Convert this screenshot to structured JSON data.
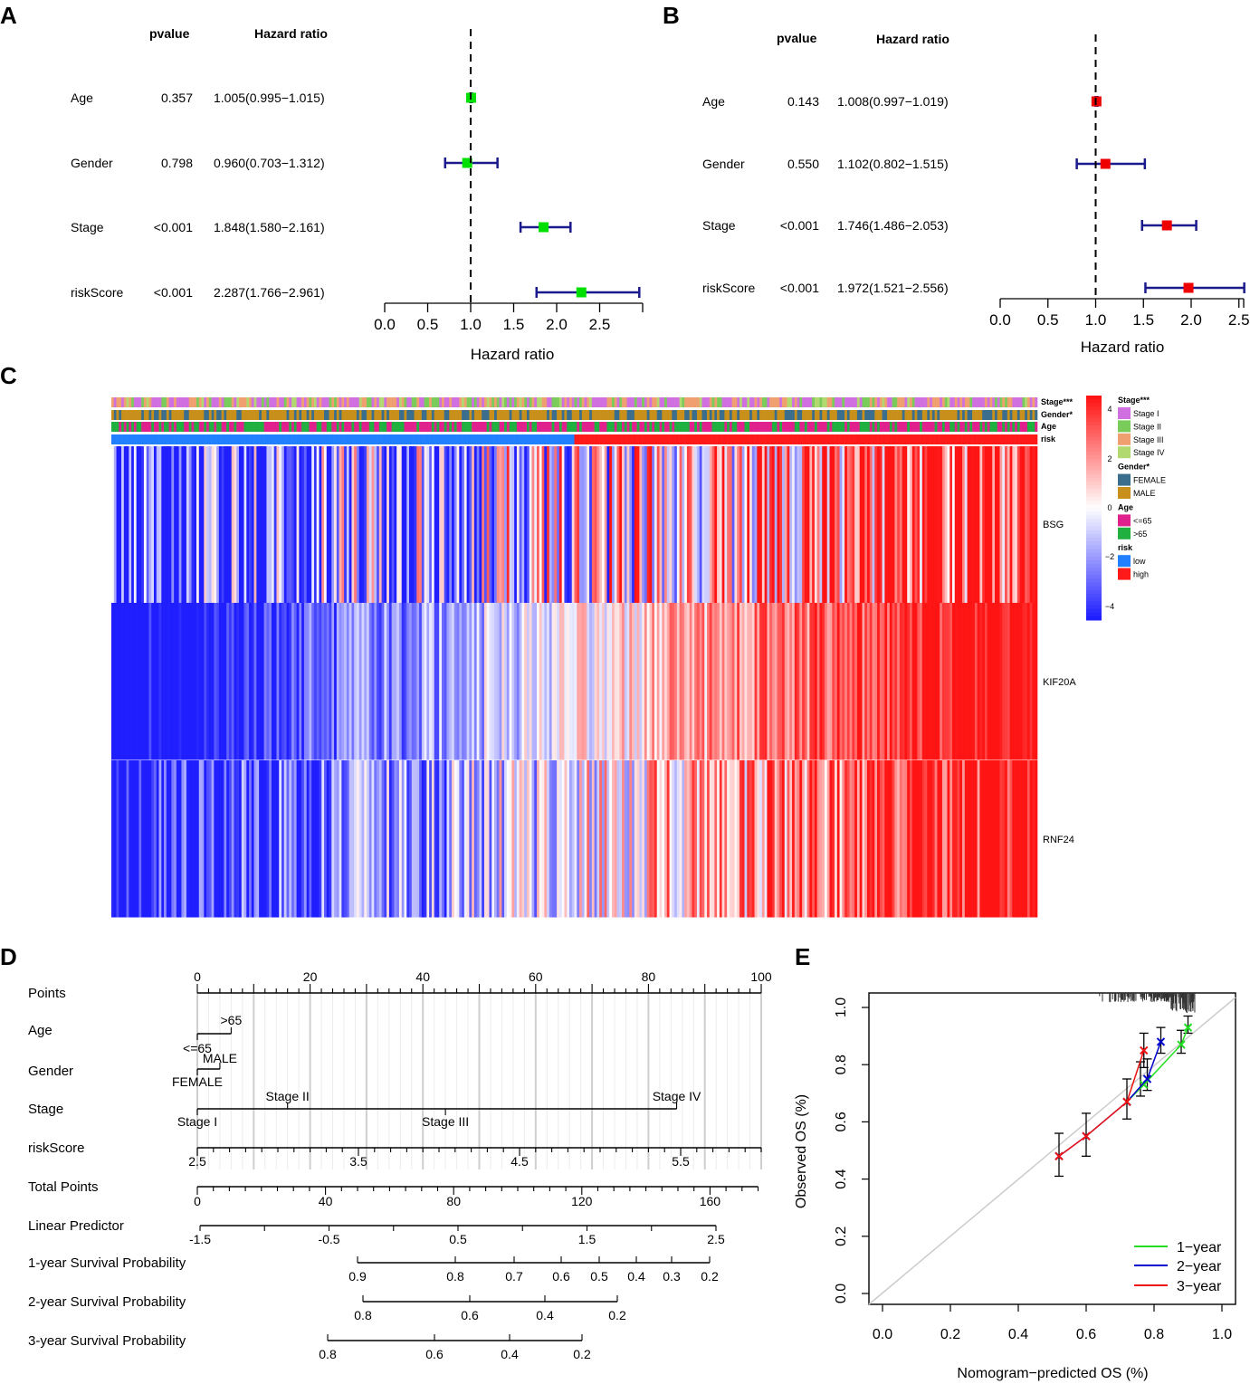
{
  "panel_labels": [
    "A",
    "B",
    "C",
    "D",
    "E"
  ],
  "chart_data": [
    {
      "id": "A",
      "type": "forest",
      "title": "",
      "headers": {
        "pvalue": "pvalue",
        "hr": "Hazard ratio"
      },
      "xlabel": "Hazard ratio",
      "xlim": [
        0,
        3.0
      ],
      "ticks": [
        "0.0",
        "0.5",
        "1.0",
        "1.5",
        "2.0",
        "2.5"
      ],
      "reference": 1.0,
      "color": "#00e000",
      "rows": [
        {
          "label": "Age",
          "pvalue": "0.357",
          "text": "1.005(0.995−1.015)",
          "hr": 1.005,
          "lo": 0.995,
          "hi": 1.015
        },
        {
          "label": "Gender",
          "pvalue": "0.798",
          "text": "0.960(0.703−1.312)",
          "hr": 0.96,
          "lo": 0.703,
          "hi": 1.312
        },
        {
          "label": "Stage",
          "pvalue": "<0.001",
          "text": "1.848(1.580−2.161)",
          "hr": 1.848,
          "lo": 1.58,
          "hi": 2.161
        },
        {
          "label": "riskScore",
          "pvalue": "<0.001",
          "text": "2.287(1.766−2.961)",
          "hr": 2.287,
          "lo": 1.766,
          "hi": 2.961
        }
      ]
    },
    {
      "id": "B",
      "type": "forest",
      "title": "",
      "headers": {
        "pvalue": "pvalue",
        "hr": "Hazard ratio"
      },
      "xlabel": "Hazard ratio",
      "xlim": [
        0,
        2.55
      ],
      "ticks": [
        "0.0",
        "0.5",
        "1.0",
        "1.5",
        "2.0",
        "2.5"
      ],
      "reference": 1.0,
      "color": "#ee0000",
      "rows": [
        {
          "label": "Age",
          "pvalue": "0.143",
          "text": "1.008(0.997−1.019)",
          "hr": 1.008,
          "lo": 0.997,
          "hi": 1.019
        },
        {
          "label": "Gender",
          "pvalue": "0.550",
          "text": "1.102(0.802−1.515)",
          "hr": 1.102,
          "lo": 0.802,
          "hi": 1.515
        },
        {
          "label": "Stage",
          "pvalue": "<0.001",
          "text": "1.746(1.486−2.053)",
          "hr": 1.746,
          "lo": 1.486,
          "hi": 2.053
        },
        {
          "label": "riskScore",
          "pvalue": "<0.001",
          "text": "1.972(1.521−2.556)",
          "hr": 1.972,
          "lo": 1.521,
          "hi": 2.556
        }
      ]
    },
    {
      "id": "C",
      "type": "heatmap",
      "annotation_rows": [
        "Stage***",
        "Gender*",
        "Age",
        "risk"
      ],
      "genes": [
        "BSG",
        "KIF20A",
        "RNF24"
      ],
      "n_samples": 370,
      "low_risk_fraction": 0.5,
      "colorbar": {
        "min": -4,
        "max": 4,
        "ticks": [
          "4",
          "2",
          "0",
          "−2",
          "−4"
        ],
        "low": "#2020ff",
        "mid": "#ffffff",
        "high": "#ff1010"
      },
      "legend": [
        {
          "title": "Stage***",
          "items": [
            {
              "label": "Stage I",
              "color": "#d070e0"
            },
            {
              "label": "Stage II",
              "color": "#7acc5a"
            },
            {
              "label": "Stage III",
              "color": "#f0a070"
            },
            {
              "label": "Stage IV",
              "color": "#b2d870"
            }
          ]
        },
        {
          "title": "Gender*",
          "items": [
            {
              "label": "FEMALE",
              "color": "#3a6e8c"
            },
            {
              "label": "MALE",
              "color": "#c8901a"
            }
          ]
        },
        {
          "title": "Age",
          "items": [
            {
              "label": "<=65",
              "color": "#e0208c"
            },
            {
              "label": ">65",
              "color": "#20b040"
            }
          ]
        },
        {
          "title": "risk",
          "items": [
            {
              "label": "low",
              "color": "#2080ff"
            },
            {
              "label": "high",
              "color": "#ff1a1a"
            }
          ]
        }
      ]
    },
    {
      "id": "D",
      "type": "nomogram",
      "rows": [
        {
          "label": "Points",
          "ticks": [
            "0",
            "20",
            "40",
            "60",
            "80",
            "100"
          ]
        },
        {
          "label": "Age",
          "levels": [
            ">65",
            "<=65"
          ]
        },
        {
          "label": "Gender",
          "levels": [
            "MALE",
            "FEMALE"
          ]
        },
        {
          "label": "Stage",
          "levels": [
            "Stage I",
            "Stage II",
            "Stage III",
            "Stage IV"
          ]
        },
        {
          "label": "riskScore",
          "ticks": [
            "2.5",
            "3.5",
            "4.5",
            "5.5"
          ]
        },
        {
          "label": "Total Points",
          "ticks": [
            "0",
            "40",
            "80",
            "120",
            "160"
          ]
        },
        {
          "label": "Linear Predictor",
          "ticks": [
            "-1.5",
            "-0.5",
            "0.5",
            "1.5",
            "2.5"
          ]
        },
        {
          "label": "1-year Survival Probability",
          "ticks": [
            "0.9",
            "0.8",
            "0.7",
            "0.6",
            "0.5",
            "0.4",
            "0.3",
            "0.2"
          ]
        },
        {
          "label": "2-year Survival Probability",
          "ticks": [
            "0.8",
            "0.6",
            "0.4",
            "0.2"
          ]
        },
        {
          "label": "3-year Survival Probability",
          "ticks": [
            "0.8",
            "0.6",
            "0.4",
            "0.2"
          ]
        }
      ]
    },
    {
      "id": "E",
      "type": "calibration",
      "xlabel": "Nomogram−predicted OS (%)",
      "ylabel": "Observed OS (%)",
      "xlim": [
        0,
        1
      ],
      "ylim": [
        0,
        1
      ],
      "xticks": [
        "0.0",
        "0.2",
        "0.4",
        "0.6",
        "0.8",
        "1.0"
      ],
      "yticks": [
        "0.0",
        "0.2",
        "0.4",
        "0.6",
        "0.8",
        "1.0"
      ],
      "series": [
        {
          "name": "1−year",
          "color": "#22dd22",
          "x": [
            0.72,
            0.77,
            0.88,
            0.9
          ],
          "y": [
            0.67,
            0.73,
            0.87,
            0.93
          ]
        },
        {
          "name": "2−year",
          "color": "#0000cc",
          "x": [
            0.52,
            0.6,
            0.72,
            0.78,
            0.82
          ],
          "y": [
            0.48,
            0.55,
            0.67,
            0.75,
            0.88
          ]
        },
        {
          "name": "3−year",
          "color": "#ee1111",
          "x": [
            0.52,
            0.6,
            0.72,
            0.77
          ],
          "y": [
            0.48,
            0.55,
            0.67,
            0.85
          ]
        }
      ]
    }
  ]
}
